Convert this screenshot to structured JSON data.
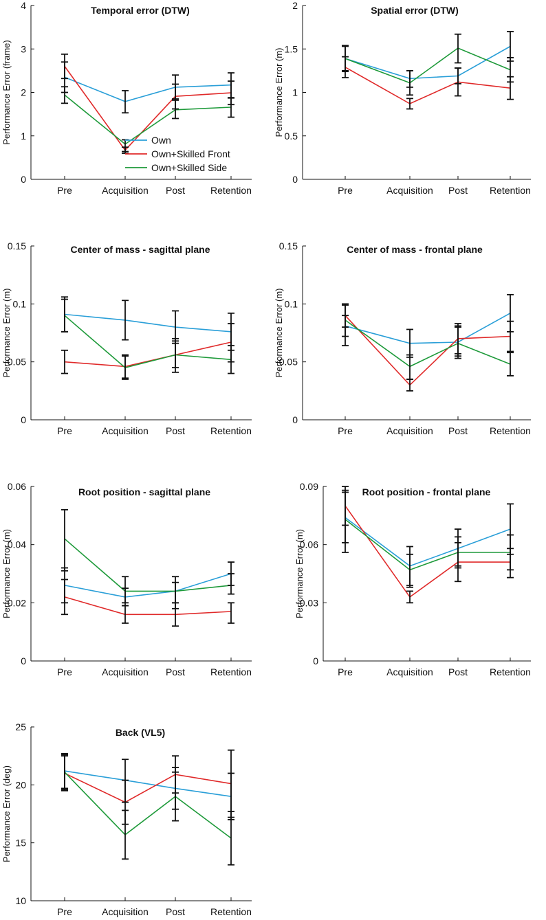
{
  "legend": [
    {
      "name": "Own",
      "color": "#2a9fd8"
    },
    {
      "name": "Own+Skilled Front",
      "color": "#e02a2a"
    },
    {
      "name": "Own+Skilled Side",
      "color": "#1e9a3a"
    }
  ],
  "chart_data": [
    {
      "type": "line",
      "title": "Temporal error (DTW)",
      "ylabel": "Performance Error (frame)",
      "categories": [
        "Pre",
        "Acquisition",
        "Post",
        "Retention"
      ],
      "ylim": [
        0,
        4
      ],
      "yticks": [
        0,
        1,
        2,
        3,
        4
      ],
      "ytick_labels": [
        "0",
        "1",
        "2",
        "3",
        "4"
      ],
      "series": [
        {
          "name": "Own",
          "values": [
            2.35,
            1.79,
            2.12,
            2.17
          ],
          "err_low": [
            2.0,
            1.53,
            1.82,
            1.88
          ],
          "err_high": [
            2.7,
            2.04,
            2.4,
            2.45
          ]
        },
        {
          "name": "Own+Skilled Front",
          "values": [
            2.6,
            0.67,
            1.91,
            1.99
          ],
          "err_low": [
            2.32,
            0.6,
            1.62,
            1.72
          ],
          "err_high": [
            2.88,
            0.74,
            2.19,
            2.26
          ]
        },
        {
          "name": "Own+Skilled Side",
          "values": [
            1.94,
            0.81,
            1.6,
            1.66
          ],
          "err_low": [
            1.75,
            0.64,
            1.4,
            1.43
          ],
          "err_high": [
            2.13,
            0.91,
            1.85,
            1.87
          ]
        }
      ],
      "legend_position": "lower-right"
    },
    {
      "type": "line",
      "title": "Spatial error (DTW)",
      "ylabel": "Performance Error (m)",
      "categories": [
        "Pre",
        "Acquisition",
        "Post",
        "Retention"
      ],
      "ylim": [
        0,
        2
      ],
      "yticks": [
        0,
        0.5,
        1,
        1.5,
        2
      ],
      "ytick_labels": [
        "0",
        "0.5",
        "1",
        "1.5",
        "2"
      ],
      "series": [
        {
          "name": "Own",
          "values": [
            1.39,
            1.16,
            1.19,
            1.53
          ],
          "err_low": [
            1.25,
            1.06,
            1.1,
            1.36
          ],
          "err_high": [
            1.53,
            1.25,
            1.28,
            1.7
          ]
        },
        {
          "name": "Own+Skilled Front",
          "values": [
            1.29,
            0.87,
            1.12,
            1.05
          ],
          "err_low": [
            1.17,
            0.81,
            0.96,
            0.92
          ],
          "err_high": [
            1.41,
            0.93,
            1.28,
            1.18
          ]
        },
        {
          "name": "Own+Skilled Side",
          "values": [
            1.39,
            1.11,
            1.51,
            1.26
          ],
          "err_low": [
            1.24,
            0.97,
            1.34,
            1.12
          ],
          "err_high": [
            1.54,
            1.25,
            1.67,
            1.4
          ]
        }
      ]
    },
    {
      "type": "line",
      "title": "Center of mass - sagittal plane",
      "ylabel": "Performance Error (m)",
      "categories": [
        "Pre",
        "Acquisition",
        "Post",
        "Retention"
      ],
      "ylim": [
        0,
        0.15
      ],
      "yticks": [
        0,
        0.05,
        0.1,
        0.15
      ],
      "ytick_labels": [
        "0",
        "0.05",
        "0.1",
        "0.15"
      ],
      "series": [
        {
          "name": "Own",
          "values": [
            0.091,
            0.086,
            0.08,
            0.076
          ],
          "err_low": [
            0.076,
            0.069,
            0.066,
            0.06
          ],
          "err_high": [
            0.106,
            0.103,
            0.094,
            0.092
          ]
        },
        {
          "name": "Own+Skilled Front",
          "values": [
            0.05,
            0.046,
            0.056,
            0.067
          ],
          "err_low": [
            0.04,
            0.036,
            0.045,
            0.05
          ],
          "err_high": [
            0.06,
            0.056,
            0.068,
            0.083
          ]
        },
        {
          "name": "Own+Skilled Side",
          "values": [
            0.09,
            0.045,
            0.056,
            0.052
          ],
          "err_low": [
            0.076,
            0.035,
            0.041,
            0.04
          ],
          "err_high": [
            0.104,
            0.055,
            0.07,
            0.064
          ]
        }
      ]
    },
    {
      "type": "line",
      "title": "Center of mass - frontal plane",
      "ylabel": "Performance Error (m)",
      "categories": [
        "Pre",
        "Acquisition",
        "Post",
        "Retention"
      ],
      "ylim": [
        0,
        0.15
      ],
      "yticks": [
        0,
        0.05,
        0.1,
        0.15
      ],
      "ytick_labels": [
        "0",
        "0.05",
        "0.1",
        "0.15"
      ],
      "series": [
        {
          "name": "Own",
          "values": [
            0.081,
            0.066,
            0.067,
            0.092
          ],
          "err_low": [
            0.072,
            0.054,
            0.053,
            0.076
          ],
          "err_high": [
            0.09,
            0.078,
            0.081,
            0.108
          ]
        },
        {
          "name": "Own+Skilled Front",
          "values": [
            0.09,
            0.03,
            0.07,
            0.072
          ],
          "err_low": [
            0.08,
            0.025,
            0.057,
            0.059
          ],
          "err_high": [
            0.1,
            0.035,
            0.083,
            0.085
          ]
        },
        {
          "name": "Own+Skilled Side",
          "values": [
            0.086,
            0.046,
            0.066,
            0.048
          ],
          "err_low": [
            0.064,
            0.035,
            0.055,
            0.038
          ],
          "err_high": [
            0.099,
            0.056,
            0.08,
            0.058
          ]
        }
      ]
    },
    {
      "type": "line",
      "title": "Root position - sagittal plane",
      "ylabel": "Performance Error (m)",
      "categories": [
        "Pre",
        "Acquisition",
        "Post",
        "Retention"
      ],
      "ylim": [
        0,
        0.06
      ],
      "yticks": [
        0,
        0.02,
        0.04,
        0.06
      ],
      "ytick_labels": [
        "0",
        "0.02",
        "0.04",
        "0.06"
      ],
      "series": [
        {
          "name": "Own",
          "values": [
            0.026,
            0.022,
            0.024,
            0.03
          ],
          "err_low": [
            0.02,
            0.019,
            0.02,
            0.026
          ],
          "err_high": [
            0.032,
            0.025,
            0.027,
            0.034
          ]
        },
        {
          "name": "Own+Skilled Front",
          "values": [
            0.022,
            0.016,
            0.016,
            0.017
          ],
          "err_low": [
            0.016,
            0.013,
            0.012,
            0.013
          ],
          "err_high": [
            0.028,
            0.019,
            0.02,
            0.02
          ]
        },
        {
          "name": "Own+Skilled Side",
          "values": [
            0.042,
            0.024,
            0.024,
            0.026
          ],
          "err_low": [
            0.031,
            0.02,
            0.018,
            0.023
          ],
          "err_high": [
            0.052,
            0.029,
            0.029,
            0.03
          ]
        }
      ]
    },
    {
      "type": "line",
      "title": "Root position - frontal plane",
      "ylabel": "Performance Error (m)",
      "categories": [
        "Pre",
        "Acquisition",
        "Post",
        "Retention"
      ],
      "ylim": [
        0,
        0.09
      ],
      "yticks": [
        0,
        0.03,
        0.06,
        0.09
      ],
      "ytick_labels": [
        "0",
        "0.03",
        "0.06",
        "0.09"
      ],
      "series": [
        {
          "name": "Own",
          "values": [
            0.074,
            0.049,
            0.058,
            0.068
          ],
          "err_low": [
            0.061,
            0.039,
            0.049,
            0.055
          ],
          "err_high": [
            0.087,
            0.059,
            0.068,
            0.081
          ]
        },
        {
          "name": "Own+Skilled Front",
          "values": [
            0.08,
            0.033,
            0.051,
            0.051
          ],
          "err_low": [
            0.07,
            0.03,
            0.041,
            0.043
          ],
          "err_high": [
            0.09,
            0.036,
            0.061,
            0.058
          ]
        },
        {
          "name": "Own+Skilled Side",
          "values": [
            0.073,
            0.047,
            0.056,
            0.056
          ],
          "err_low": [
            0.056,
            0.038,
            0.048,
            0.047
          ],
          "err_high": [
            0.088,
            0.055,
            0.064,
            0.065
          ]
        }
      ]
    },
    {
      "type": "line",
      "title": "Back (VL5)",
      "ylabel": "Performance Error (deg)",
      "categories": [
        "Pre",
        "Acquisition",
        "Post",
        "Retention"
      ],
      "ylim": [
        10,
        25
      ],
      "yticks": [
        10,
        15,
        20,
        25
      ],
      "ytick_labels": [
        "10",
        "15",
        "20",
        "25"
      ],
      "series": [
        {
          "name": "Own",
          "values": [
            21.2,
            20.4,
            19.7,
            19.0
          ],
          "err_low": [
            19.7,
            18.5,
            17.9,
            17.0
          ],
          "err_high": [
            22.7,
            22.2,
            21.5,
            21.0
          ]
        },
        {
          "name": "Own+Skilled Front",
          "values": [
            21.0,
            18.5,
            20.9,
            20.1
          ],
          "err_low": [
            19.5,
            16.6,
            19.3,
            17.2
          ],
          "err_high": [
            22.5,
            20.4,
            22.5,
            23.0
          ]
        },
        {
          "name": "Own+Skilled Side",
          "values": [
            21.1,
            15.7,
            19.0,
            15.4
          ],
          "err_low": [
            19.6,
            13.6,
            16.9,
            13.1
          ],
          "err_high": [
            22.6,
            17.8,
            21.1,
            17.7
          ]
        }
      ]
    }
  ]
}
